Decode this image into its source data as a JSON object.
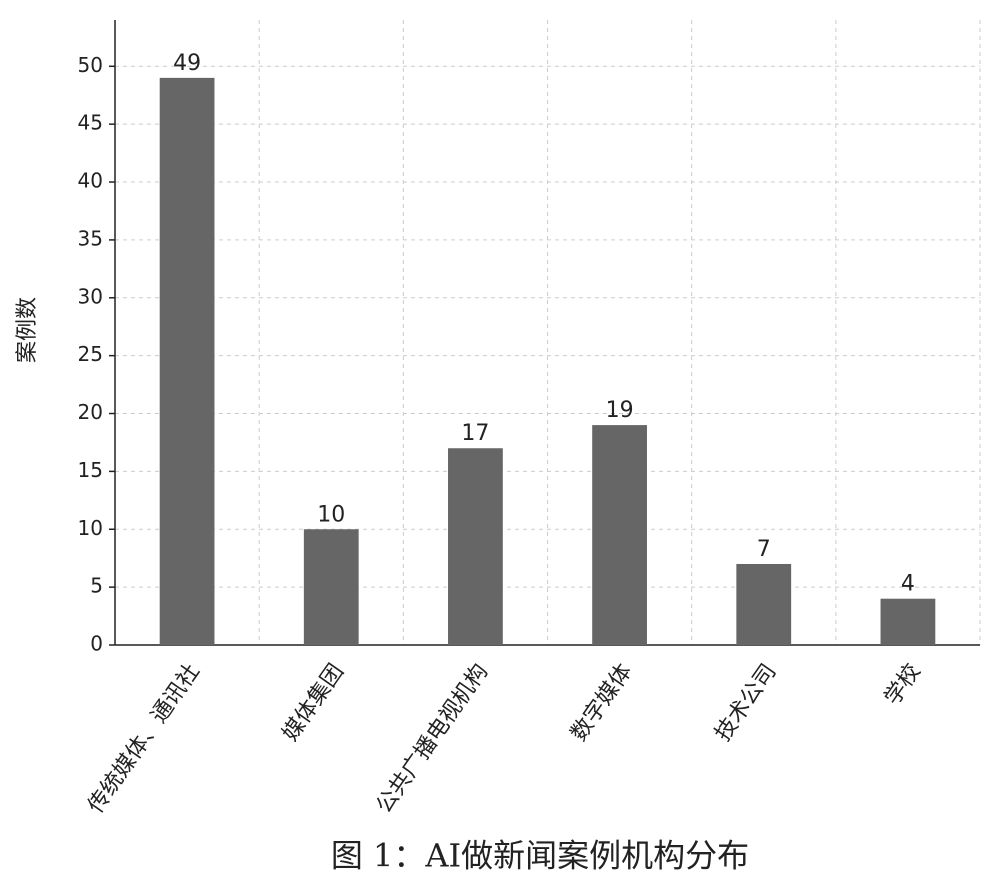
{
  "chart_data": {
    "type": "bar",
    "title": "图 1：AI做新闻案例机构分布",
    "y_label": "案例数",
    "categories": [
      "传统媒体、通讯社",
      "媒体集团",
      "公共广播电视机构",
      "数字媒体",
      "技术公司",
      "学校"
    ],
    "values": [
      49,
      10,
      17,
      19,
      7,
      4
    ],
    "color": "#666666",
    "ylim": [
      0,
      54
    ],
    "yticks": [
      0,
      5,
      10,
      15,
      20,
      25,
      30,
      35,
      40,
      45,
      50
    ],
    "grid": true
  }
}
